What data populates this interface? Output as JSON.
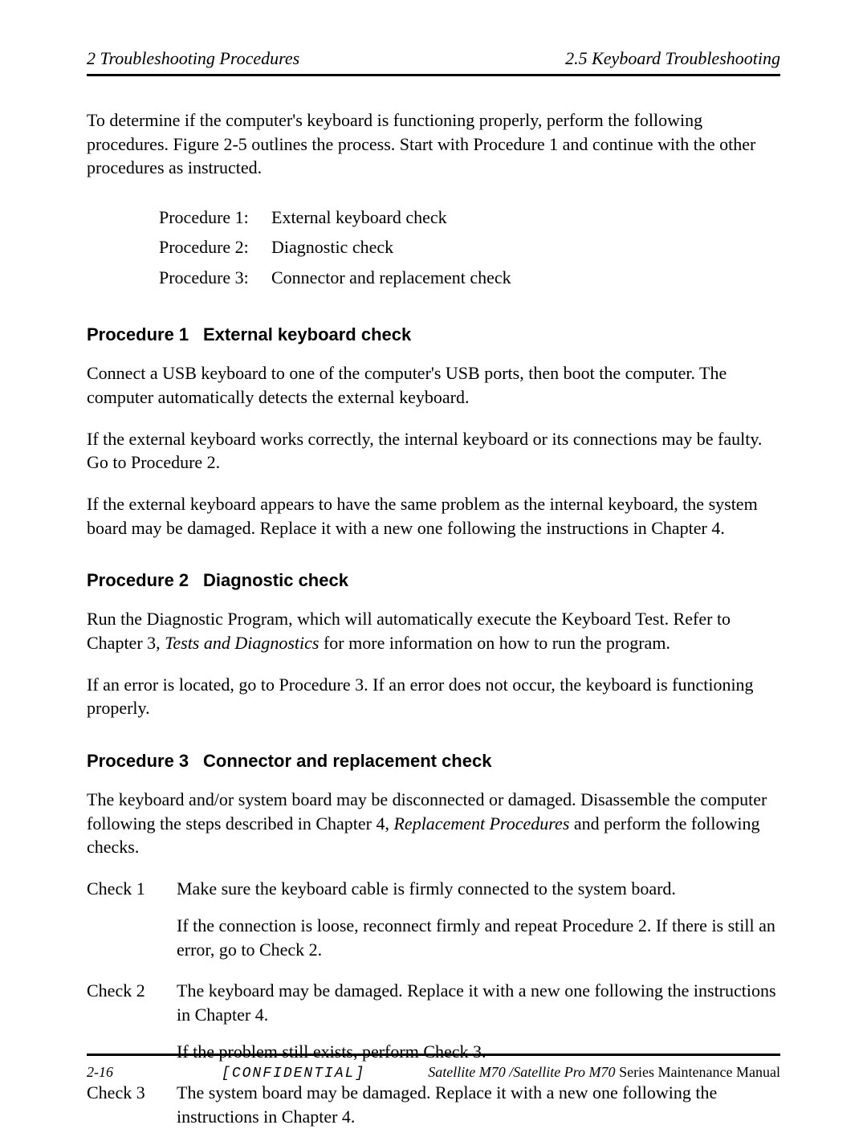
{
  "header": {
    "left": "2 Troubleshooting Procedures",
    "right": "2.5 Keyboard Troubleshooting"
  },
  "intro": "To determine if the computer's keyboard is functioning properly, perform the following procedures. Figure 2-5 outlines the process. Start with Procedure 1 and continue with the other procedures as instructed.",
  "proc_list": [
    {
      "label": "Procedure 1:",
      "title": "External keyboard check"
    },
    {
      "label": "Procedure 2:",
      "title": "Diagnostic check"
    },
    {
      "label": "Procedure 3:",
      "title": "Connector and replacement check"
    }
  ],
  "sections": {
    "p1": {
      "num": "Procedure 1",
      "title": "External keyboard check",
      "paras": [
        "Connect a USB keyboard to one of the computer's USB ports, then boot the computer. The computer automatically detects the external keyboard.",
        "If the external keyboard works correctly, the internal keyboard or its connections may be faulty. Go to Procedure 2.",
        "If the external keyboard appears to have the same problem as the internal keyboard, the system board may be damaged.  Replace it with a new one following the instructions in Chapter 4."
      ]
    },
    "p2": {
      "num": "Procedure 2",
      "title": "Diagnostic check",
      "para1_pre": "Run the Diagnostic Program, which will automatically execute the Keyboard Test.  Refer to Chapter 3, ",
      "para1_ital": "Tests and Diagnostics",
      "para1_post": " for more information on how to run the program.",
      "para2": "If an error is located, go to Procedure 3.  If an error does not occur, the keyboard is functioning properly."
    },
    "p3": {
      "num": "Procedure 3",
      "title": "Connector and replacement check",
      "intro_pre": "The keyboard and/or system board may be disconnected or damaged.  Disassemble the computer following the steps described in Chapter 4, ",
      "intro_ital": "Replacement Procedures",
      "intro_post": " and perform the following checks.",
      "checks": [
        {
          "label": "Check 1",
          "lines": [
            "Make sure the keyboard cable is firmly connected to the system board.",
            "If the connection is loose, reconnect firmly and repeat Procedure 2. If there is still an error, go to Check 2."
          ]
        },
        {
          "label": "Check 2",
          "lines": [
            "The keyboard may be damaged. Replace it with a new one following the instructions in Chapter 4.",
            "If the problem still exists, perform Check 3."
          ]
        },
        {
          "label": "Check 3",
          "lines": [
            "The system board may be damaged.  Replace it with a new one following the instructions in Chapter 4."
          ]
        }
      ]
    }
  },
  "footer": {
    "page_num": "2-16",
    "confidential": "[CONFIDENTIAL]",
    "manual_ital": "Satellite M70 /Satellite Pro M70 ",
    "manual_reg": "Series Maintenance Manual"
  }
}
